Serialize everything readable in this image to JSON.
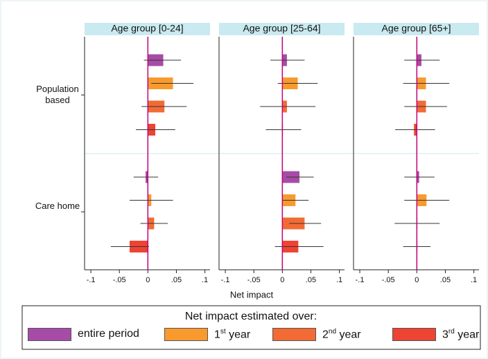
{
  "chart_data": {
    "type": "bar",
    "orientation": "horizontal",
    "xlabel": "Net impact",
    "legend_title": "Net impact estimated over:",
    "categories": [
      "Population based",
      "Care home"
    ],
    "xlim": [
      -0.111,
      0.109
    ],
    "xticks": [
      {
        "value": -0.1,
        "label": "-.1"
      },
      {
        "value": -0.05,
        "label": "-.05"
      },
      0,
      {
        "value": 0.05,
        "label": ".05"
      },
      {
        "value": 0.1,
        "label": ".1"
      }
    ],
    "series": [
      {
        "name": "entire period",
        "color": "#a64ca6"
      },
      {
        "name": "1st year",
        "color": "#f89a2e"
      },
      {
        "name": "2nd year",
        "color": "#f26b35"
      },
      {
        "name": "3rd year",
        "color": "#ee4433"
      }
    ],
    "panels": [
      {
        "title": "Age group [0-24]",
        "series": [
          {
            "values": [
              0.027,
              -0.004
            ],
            "lower": [
              -0.007,
              -0.025
            ],
            "upper": [
              0.058,
              0.018
            ]
          },
          {
            "values": [
              0.044,
              0.006
            ],
            "lower": [
              0.006,
              -0.032
            ],
            "upper": [
              0.08,
              0.044
            ]
          },
          {
            "values": [
              0.029,
              0.011
            ],
            "lower": [
              -0.011,
              -0.013
            ],
            "upper": [
              0.068,
              0.035
            ]
          },
          {
            "values": [
              0.013,
              -0.032
            ],
            "lower": [
              -0.021,
              -0.065
            ],
            "upper": [
              0.048,
              0.002
            ]
          }
        ]
      },
      {
        "title": "Age group [25-64]",
        "series": [
          {
            "values": [
              0.008,
              0.03
            ],
            "lower": [
              -0.021,
              0.007
            ],
            "upper": [
              0.039,
              0.055
            ]
          },
          {
            "values": [
              0.027,
              0.023
            ],
            "lower": [
              -0.008,
              0
            ],
            "upper": [
              0.062,
              0.046
            ]
          },
          {
            "values": [
              0.008,
              0.039
            ],
            "lower": [
              -0.039,
              0.012
            ],
            "upper": [
              0.058,
              0.068
            ]
          },
          {
            "values": [
              0.001,
              0.028
            ],
            "lower": [
              -0.029,
              -0.013
            ],
            "upper": [
              0.033,
              0.072
            ]
          }
        ]
      },
      {
        "title": "Age group [65+]",
        "series": [
          {
            "values": [
              0.008,
              0.004
            ],
            "lower": [
              -0.022,
              -0.022
            ],
            "upper": [
              0.04,
              0.031
            ]
          },
          {
            "values": [
              0.016,
              0.017
            ],
            "lower": [
              -0.024,
              -0.022
            ],
            "upper": [
              0.057,
              0.057
            ]
          },
          {
            "values": [
              0.016,
              0.001
            ],
            "lower": [
              -0.022,
              -0.039
            ],
            "upper": [
              0.053,
              0.04
            ]
          },
          {
            "values": [
              -0.005,
              0.001
            ],
            "lower": [
              -0.038,
              -0.024
            ],
            "upper": [
              0.032,
              0.024
            ]
          }
        ]
      }
    ]
  }
}
